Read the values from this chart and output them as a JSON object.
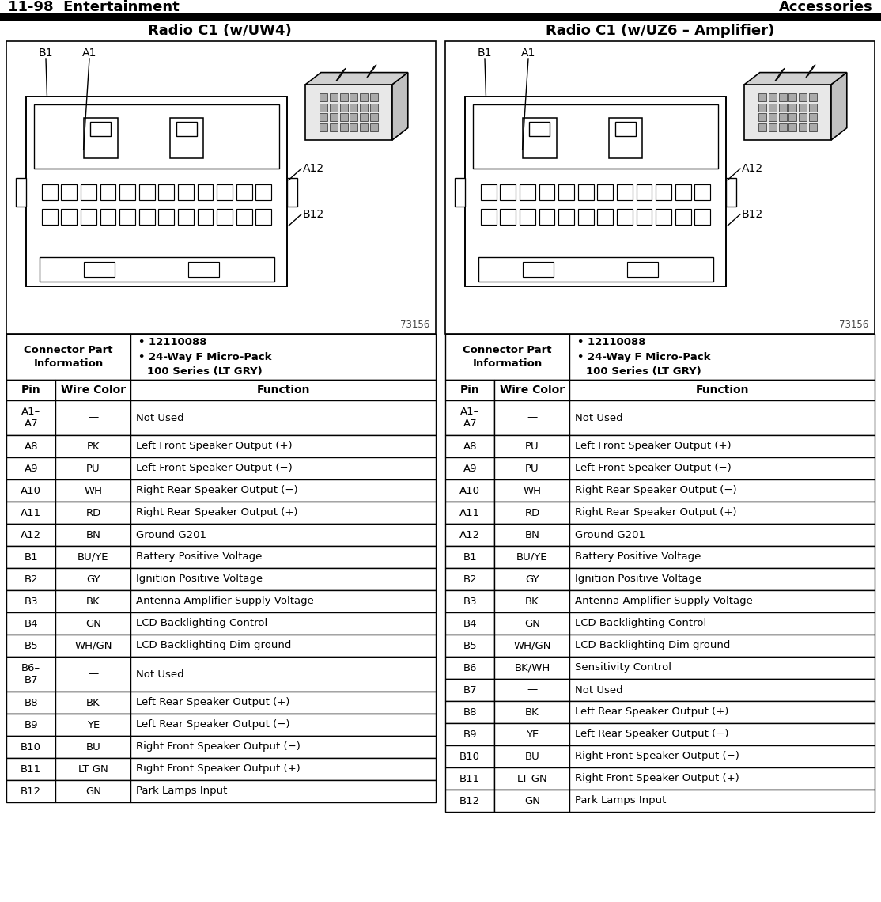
{
  "header_left": "11-98  Entertainment",
  "header_right": "Accessories",
  "title_left": "Radio C1 (w/UW4)",
  "title_right": "Radio C1 (w/UZ6 – Amplifier)",
  "part_number": "12110088",
  "diagram_code": "73156",
  "left_table": {
    "headers": [
      "Pin",
      "Wire Color",
      "Function"
    ],
    "rows": [
      [
        "A1–\nA7",
        "—",
        "Not Used"
      ],
      [
        "A8",
        "PK",
        "Left Front Speaker Output (+)"
      ],
      [
        "A9",
        "PU",
        "Left Front Speaker Output (−)"
      ],
      [
        "A10",
        "WH",
        "Right Rear Speaker Output (−)"
      ],
      [
        "A11",
        "RD",
        "Right Rear Speaker Output (+)"
      ],
      [
        "A12",
        "BN",
        "Ground G201"
      ],
      [
        "B1",
        "BU/YE",
        "Battery Positive Voltage"
      ],
      [
        "B2",
        "GY",
        "Ignition Positive Voltage"
      ],
      [
        "B3",
        "BK",
        "Antenna Amplifier Supply Voltage"
      ],
      [
        "B4",
        "GN",
        "LCD Backlighting Control"
      ],
      [
        "B5",
        "WH/GN",
        "LCD Backlighting Dim ground"
      ],
      [
        "B6–\nB7",
        "—",
        "Not Used"
      ],
      [
        "B8",
        "BK",
        "Left Rear Speaker Output (+)"
      ],
      [
        "B9",
        "YE",
        "Left Rear Speaker Output (−)"
      ],
      [
        "B10",
        "BU",
        "Right Front Speaker Output (−)"
      ],
      [
        "B11",
        "LT GN",
        "Right Front Speaker Output (+)"
      ],
      [
        "B12",
        "GN",
        "Park Lamps Input"
      ]
    ]
  },
  "right_table": {
    "headers": [
      "Pin",
      "Wire Color",
      "Function"
    ],
    "rows": [
      [
        "A1–\nA7",
        "—",
        "Not Used"
      ],
      [
        "A8",
        "PU",
        "Left Front Speaker Output (+)"
      ],
      [
        "A9",
        "PU",
        "Left Front Speaker Output (−)"
      ],
      [
        "A10",
        "WH",
        "Right Rear Speaker Output (−)"
      ],
      [
        "A11",
        "RD",
        "Right Rear Speaker Output (+)"
      ],
      [
        "A12",
        "BN",
        "Ground G201"
      ],
      [
        "B1",
        "BU/YE",
        "Battery Positive Voltage"
      ],
      [
        "B2",
        "GY",
        "Ignition Positive Voltage"
      ],
      [
        "B3",
        "BK",
        "Antenna Amplifier Supply Voltage"
      ],
      [
        "B4",
        "GN",
        "LCD Backlighting Control"
      ],
      [
        "B5",
        "WH/GN",
        "LCD Backlighting Dim ground"
      ],
      [
        "B6",
        "BK/WH",
        "Sensitivity Control"
      ],
      [
        "B7",
        "—",
        "Not Used"
      ],
      [
        "B8",
        "BK",
        "Left Rear Speaker Output (+)"
      ],
      [
        "B9",
        "YE",
        "Left Rear Speaker Output (−)"
      ],
      [
        "B10",
        "BU",
        "Right Front Speaker Output (−)"
      ],
      [
        "B11",
        "LT GN",
        "Right Front Speaker Output (+)"
      ],
      [
        "B12",
        "GN",
        "Park Lamps Input"
      ]
    ]
  }
}
